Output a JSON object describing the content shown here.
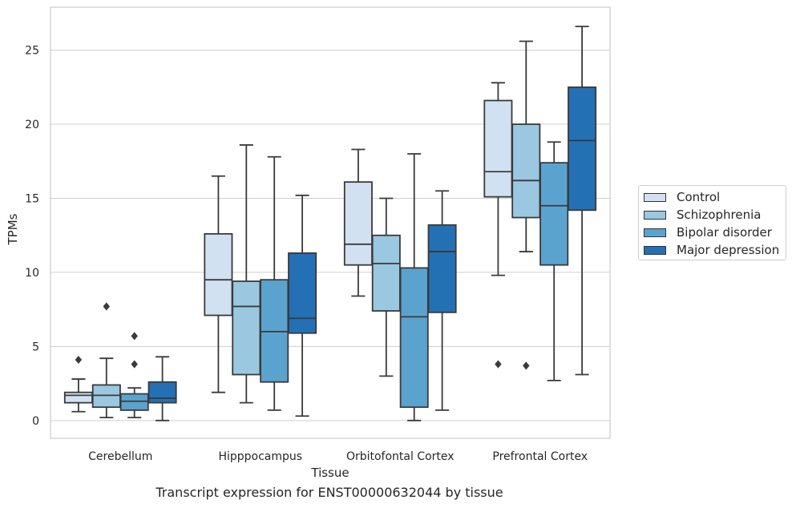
{
  "chart_data": {
    "type": "box",
    "title": "",
    "caption": "Transcript expression for ENST00000632044 by tissue",
    "xlabel": "Tissue",
    "ylabel": "TPMs",
    "ylim": [
      -1.2,
      27.9
    ],
    "yticks": [
      0,
      5,
      10,
      15,
      20,
      25
    ],
    "categories": [
      "Cerebellum",
      "Hipppocampus",
      "Orbitofontal Cortex",
      "Prefrontal Cortex"
    ],
    "grid": true,
    "legend_position": "right",
    "series": [
      {
        "name": "Control",
        "color": "#d2e1f2",
        "boxes": [
          {
            "whisker_low": 0.6,
            "q1": 1.2,
            "median": 1.7,
            "q3": 1.9,
            "whisker_high": 2.8,
            "outliers": [
              4.1
            ]
          },
          {
            "whisker_low": 1.9,
            "q1": 7.1,
            "median": 9.5,
            "q3": 12.6,
            "whisker_high": 16.5,
            "outliers": []
          },
          {
            "whisker_low": 8.4,
            "q1": 10.5,
            "median": 11.9,
            "q3": 16.1,
            "whisker_high": 18.3,
            "outliers": []
          },
          {
            "whisker_low": 9.8,
            "q1": 15.1,
            "median": 16.8,
            "q3": 21.6,
            "whisker_high": 22.8,
            "outliers": [
              3.8
            ]
          }
        ]
      },
      {
        "name": "Schizophrenia",
        "color": "#9ac8e0",
        "boxes": [
          {
            "whisker_low": 0.2,
            "q1": 0.9,
            "median": 1.7,
            "q3": 2.4,
            "whisker_high": 4.2,
            "outliers": [
              7.7
            ]
          },
          {
            "whisker_low": 1.2,
            "q1": 3.1,
            "median": 7.7,
            "q3": 9.4,
            "whisker_high": 18.6,
            "outliers": []
          },
          {
            "whisker_low": 3.0,
            "q1": 7.4,
            "median": 10.6,
            "q3": 12.5,
            "whisker_high": 15.0,
            "outliers": []
          },
          {
            "whisker_low": 11.4,
            "q1": 13.7,
            "median": 16.2,
            "q3": 20.0,
            "whisker_high": 25.6,
            "outliers": [
              3.7
            ]
          }
        ]
      },
      {
        "name": "Bipolar disorder",
        "color": "#5ba3cf",
        "boxes": [
          {
            "whisker_low": 0.2,
            "q1": 0.7,
            "median": 1.3,
            "q3": 1.8,
            "whisker_high": 2.2,
            "outliers": [
              3.8,
              5.7
            ]
          },
          {
            "whisker_low": 0.7,
            "q1": 2.6,
            "median": 6.0,
            "q3": 9.5,
            "whisker_high": 17.8,
            "outliers": []
          },
          {
            "whisker_low": 0.0,
            "q1": 0.9,
            "median": 7.0,
            "q3": 10.3,
            "whisker_high": 18.0,
            "outliers": []
          },
          {
            "whisker_low": 2.7,
            "q1": 10.5,
            "median": 14.5,
            "q3": 17.4,
            "whisker_high": 18.8,
            "outliers": []
          }
        ]
      },
      {
        "name": "Major depression",
        "color": "#2470b4",
        "boxes": [
          {
            "whisker_low": 0.0,
            "q1": 1.2,
            "median": 1.5,
            "q3": 2.6,
            "whisker_high": 4.3,
            "outliers": []
          },
          {
            "whisker_low": 0.3,
            "q1": 5.9,
            "median": 6.9,
            "q3": 11.3,
            "whisker_high": 15.2,
            "outliers": []
          },
          {
            "whisker_low": 0.7,
            "q1": 7.3,
            "median": 11.4,
            "q3": 13.2,
            "whisker_high": 15.5,
            "outliers": []
          },
          {
            "whisker_low": 3.1,
            "q1": 14.2,
            "median": 18.9,
            "q3": 22.5,
            "whisker_high": 26.6,
            "outliers": []
          }
        ]
      }
    ]
  }
}
